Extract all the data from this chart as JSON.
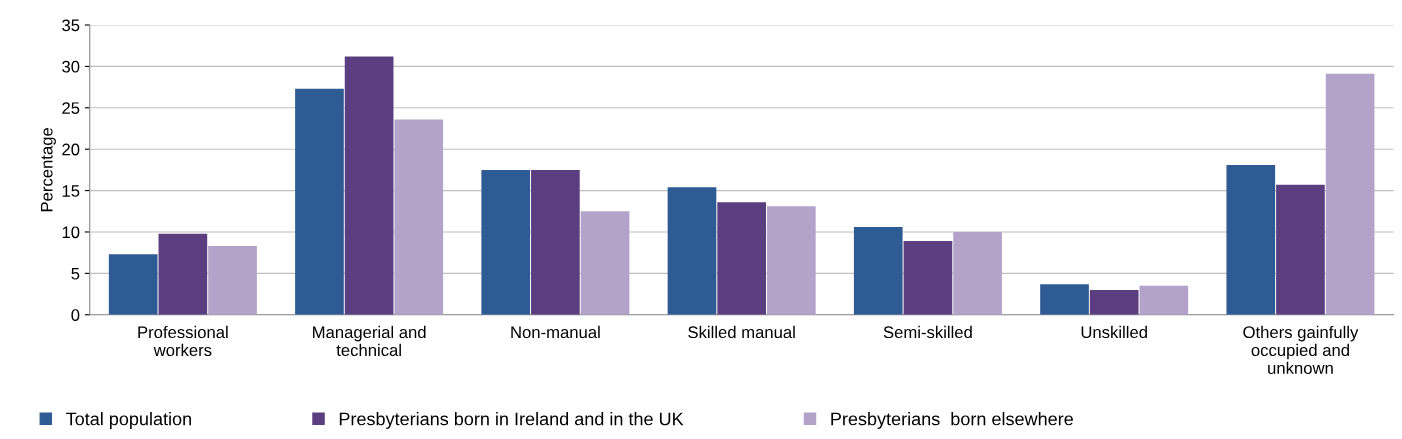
{
  "chart_data": {
    "type": "bar",
    "ylabel": "Percentage",
    "categories": [
      "Professional\nworkers",
      "Managerial and\ntechnical",
      "Non-manual",
      "Skilled manual",
      "Semi-skilled",
      "Unskilled",
      "Others gainfully\noccupied and\nunknown"
    ],
    "series": [
      {
        "name": "Total population",
        "color": "#2e5b94",
        "values": [
          7.3,
          27.3,
          17.5,
          15.4,
          10.6,
          3.7,
          18.1
        ]
      },
      {
        "name": "Presbyterians born in Ireland and in the UK",
        "color": "#5b3e7f",
        "values": [
          9.8,
          31.2,
          17.5,
          13.6,
          8.9,
          3.0,
          15.7
        ]
      },
      {
        "name": "Presbyterians  born elsewhere",
        "color": "#b3a2c9",
        "values": [
          8.3,
          23.6,
          12.5,
          13.1,
          10.0,
          3.5,
          29.1
        ]
      }
    ],
    "ylim": [
      0,
      35
    ],
    "yticks": [
      0,
      5,
      10,
      15,
      20,
      25,
      30,
      35
    ],
    "grid": "y",
    "legend": "bottom left"
  }
}
